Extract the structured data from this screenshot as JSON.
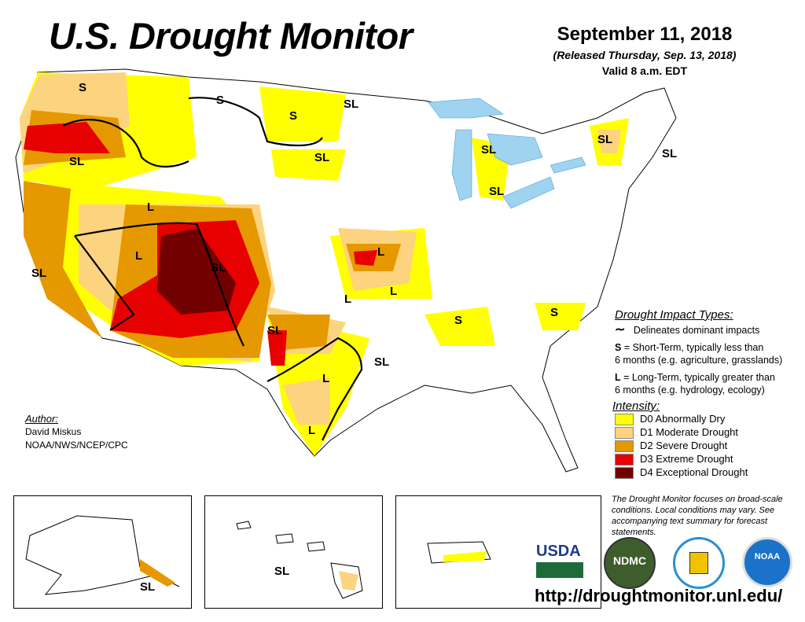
{
  "header": {
    "title": "U.S. Drought Monitor",
    "date": "September 11, 2018",
    "released": "(Released Thursday, Sep. 13, 2018)",
    "valid": "Valid 8 a.m. EDT"
  },
  "map_labels": [
    "S",
    "S",
    "S",
    "SL",
    "SL",
    "SL",
    "SL",
    "SL",
    "SL",
    "L",
    "SL",
    "SL",
    "L",
    "L",
    "L",
    "SL",
    "L",
    "S",
    "SL",
    "L",
    "L",
    "S",
    "SL",
    "SL",
    "SL"
  ],
  "impact_legend": {
    "heading": "Drought Impact Types:",
    "line": "Delineates dominant impacts",
    "short_key": "S",
    "short_text": " = Short-Term, typically less than",
    "short_text2": "6 months (e.g. agriculture, grasslands)",
    "long_key": "L",
    "long_text": " = Long-Term, typically greater than",
    "long_text2": "6 months (e.g. hydrology, ecology)"
  },
  "intensity": {
    "heading": "Intensity:",
    "items": [
      {
        "label": "D0 Abnormally Dry",
        "color": "#FFFF00"
      },
      {
        "label": "D1 Moderate Drought",
        "color": "#FCD37F"
      },
      {
        "label": "D2 Severe Drought",
        "color": "#E69800"
      },
      {
        "label": "D3 Extreme Drought",
        "color": "#E60000"
      },
      {
        "label": "D4 Exceptional Drought",
        "color": "#730000"
      }
    ]
  },
  "note": "The Drought Monitor focuses on broad-scale conditions. Local conditions may vary. See accompanying text summary for forecast statements.",
  "author": {
    "heading": "Author:",
    "name": "David Miskus",
    "org": "NOAA/NWS/NCEP/CPC"
  },
  "logos": {
    "usda": "USDA",
    "ndmc": "NDMC",
    "noaa": "NOAA"
  },
  "url": "http://droughtmonitor.unl.edu/"
}
